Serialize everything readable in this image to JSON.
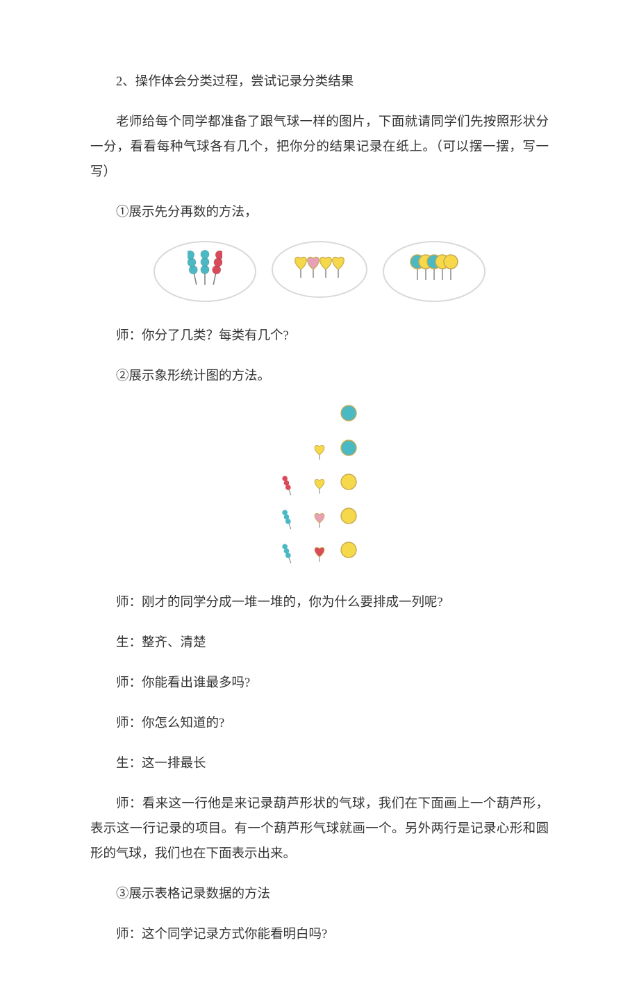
{
  "section2_title": "2、操作体会分类过程，尝试记录分类结果",
  "intro": "老师给每个同学都准备了跟气球一样的图片，下面就请同学们先按照形状分一分，看看每种气球各有几个，把你分的结果记录在纸上。（可以摆一摆，写一写）",
  "step1": "①展示先分再数的方法，",
  "teacher_q1": "师：你分了几类？每类有几个?",
  "step2": "②展示象形统计图的方法。",
  "teacher_q2": "师：刚才的同学分成一堆一堆的，你为什么要排成一列呢?",
  "student_a1": "生：整齐、清楚",
  "teacher_q3": "师：你能看出谁最多吗?",
  "teacher_q4": "师：你怎么知道的?",
  "student_a2": "生：这一排最长",
  "teacher_explain": "师：看来这一行他是来记录葫芦形状的气球，我们在下面画上一个葫芦形，表示这一行记录的项目。有一个葫芦形气球就画一个。另外两行是记录心形和圆形的气球，我们也在下面表示出来。",
  "step3": "③展示表格记录数据的方法",
  "teacher_q5": "师：这个同学记录方式你能看明白吗?",
  "colors": {
    "blue": "#4ab9c4",
    "yellow": "#f5d94b",
    "red": "#d94b5a",
    "pink": "#e7a0b8",
    "stroke": "#c9a94e",
    "ellipse_stroke": "#d9d9d9"
  },
  "grouped": {
    "ellipse_w": 150,
    "ellipse_h": 90,
    "gourd_group": [
      {
        "color": "blue"
      },
      {
        "color": "blue"
      },
      {
        "color": "red"
      }
    ],
    "heart_group": [
      {
        "color": "yellow"
      },
      {
        "color": "pink"
      },
      {
        "color": "yellow"
      },
      {
        "color": "yellow"
      }
    ],
    "round_group": [
      {
        "color": "blue"
      },
      {
        "color": "yellow"
      },
      {
        "color": "blue"
      },
      {
        "color": "yellow"
      },
      {
        "color": "yellow"
      }
    ]
  },
  "pictograph": {
    "gourd_col": [
      {
        "color": "blue"
      },
      {
        "color": "blue"
      },
      {
        "color": "red"
      }
    ],
    "heart_col": [
      {
        "color": "red"
      },
      {
        "color": "pink"
      },
      {
        "color": "yellow"
      },
      {
        "color": "yellow"
      }
    ],
    "round_col": [
      {
        "color": "yellow"
      },
      {
        "color": "yellow"
      },
      {
        "color": "yellow"
      },
      {
        "color": "blue"
      },
      {
        "color": "blue"
      }
    ]
  }
}
